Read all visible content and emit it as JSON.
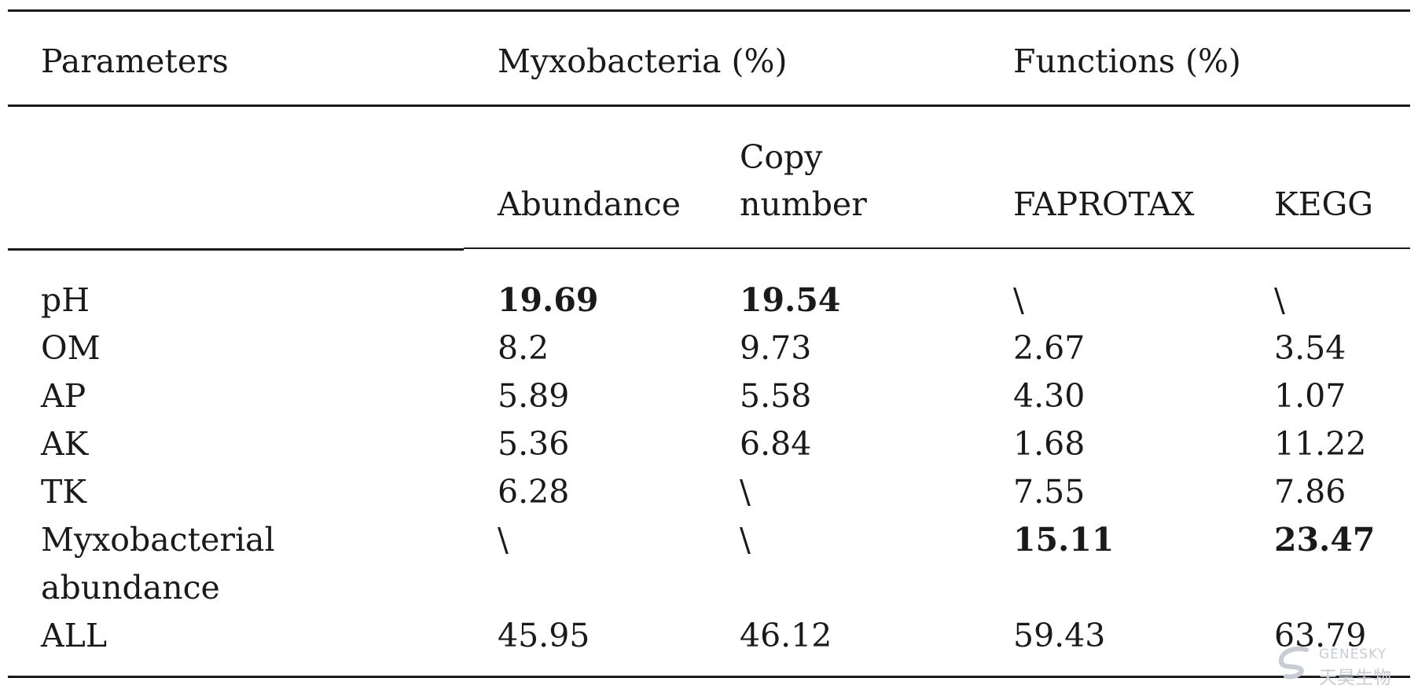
{
  "table": {
    "header": {
      "parameters": "Parameters",
      "myxobacteria": "Myxobacteria (%)",
      "functions": "Functions (%)"
    },
    "subheader": {
      "abundance": "Abundance",
      "copy_line1": "Copy",
      "copy_line2": "number",
      "faprotax": "FAPROTAX",
      "kegg": "KEGG"
    },
    "rows": [
      {
        "param": "pH",
        "abundance": "19.69",
        "copy": "19.54",
        "faprotax": "\\",
        "kegg": "\\"
      },
      {
        "param": "OM",
        "abundance": "8.2",
        "copy": "9.73",
        "faprotax": "2.67",
        "kegg": "3.54"
      },
      {
        "param": "AP",
        "abundance": "5.89",
        "copy": "5.58",
        "faprotax": "4.30",
        "kegg": "1.07"
      },
      {
        "param": "AK",
        "abundance": "5.36",
        "copy": "6.84",
        "faprotax": "1.68",
        "kegg": "11.22"
      },
      {
        "param": "TK",
        "abundance": "6.28",
        "copy": "\\",
        "faprotax": "7.55",
        "kegg": "7.86"
      },
      {
        "param": "Myxobacterial",
        "param_line2": "abundance",
        "abundance": "\\",
        "copy": "\\",
        "faprotax": "15.11",
        "kegg": "23.47"
      },
      {
        "param": "ALL",
        "abundance": "45.95",
        "copy": "46.12",
        "faprotax": "59.43",
        "kegg": "63.79"
      }
    ]
  },
  "watermark": {
    "brand_en": "GENESKY",
    "brand_cn": "天昊生物"
  }
}
